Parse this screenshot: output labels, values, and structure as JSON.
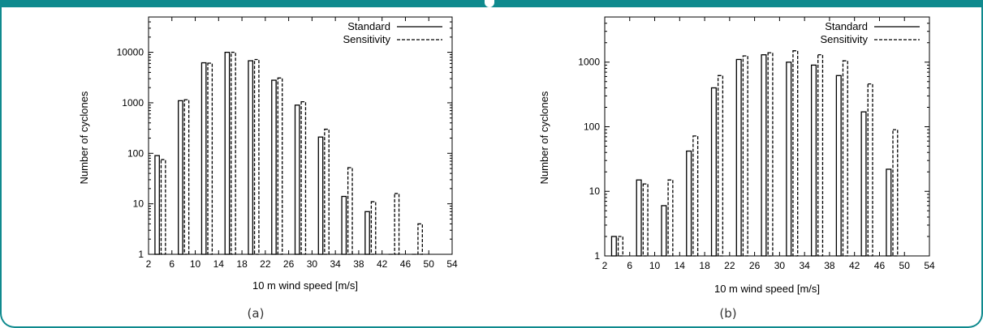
{
  "colors": {
    "frame": "#0f8a8e",
    "bar": "#000000"
  },
  "captions": {
    "a": "(a)",
    "b": "(b)"
  },
  "chart_data": [
    {
      "type": "bar",
      "xlabel": "10 m wind speed [m/s]",
      "ylabel": "Number of cyclones",
      "yscale": "log",
      "ylim": [
        1,
        50000
      ],
      "xlim": [
        2,
        54
      ],
      "yticks": [
        "1",
        "10",
        "100",
        "1000",
        "10000"
      ],
      "xticks": [
        "2",
        "6",
        "10",
        "14",
        "18",
        "22",
        "26",
        "30",
        "34",
        "38",
        "42",
        "46",
        "50",
        "54"
      ],
      "legend": "top-right",
      "series": [
        {
          "name": "Standard",
          "style": "solid",
          "x": [
            4,
            8,
            12,
            16,
            20,
            24,
            28,
            32,
            36,
            40,
            44,
            48
          ],
          "values": [
            90,
            1100,
            6200,
            10000,
            6800,
            2800,
            900,
            210,
            14,
            7,
            1,
            1
          ]
        },
        {
          "name": "Sensitivity",
          "style": "dashed",
          "x": [
            4,
            8,
            12,
            16,
            20,
            24,
            28,
            32,
            36,
            40,
            44,
            48
          ],
          "values": [
            75,
            1150,
            6100,
            10000,
            7200,
            3100,
            1050,
            300,
            52,
            11,
            16,
            4
          ]
        }
      ]
    },
    {
      "type": "bar",
      "xlabel": "10 m wind speed [m/s]",
      "ylabel": "Number of cyclones",
      "yscale": "log",
      "ylim": [
        1,
        5000
      ],
      "xlim": [
        2,
        54
      ],
      "yticks": [
        "1",
        "10",
        "100",
        "1000"
      ],
      "xticks": [
        "2",
        "6",
        "10",
        "14",
        "18",
        "22",
        "26",
        "30",
        "34",
        "38",
        "42",
        "46",
        "50",
        "54"
      ],
      "legend": "top-right",
      "series": [
        {
          "name": "Standard",
          "style": "solid",
          "x": [
            4,
            8,
            12,
            16,
            20,
            24,
            28,
            32,
            36,
            40,
            44,
            48
          ],
          "values": [
            2,
            15,
            6,
            42,
            400,
            1100,
            1300,
            1000,
            900,
            620,
            170,
            22
          ]
        },
        {
          "name": "Sensitivity",
          "style": "dashed",
          "x": [
            4,
            8,
            12,
            16,
            20,
            24,
            28,
            32,
            36,
            40,
            44,
            48
          ],
          "values": [
            2,
            13,
            15,
            72,
            620,
            1250,
            1400,
            1500,
            1300,
            1050,
            460,
            90
          ]
        }
      ]
    }
  ]
}
